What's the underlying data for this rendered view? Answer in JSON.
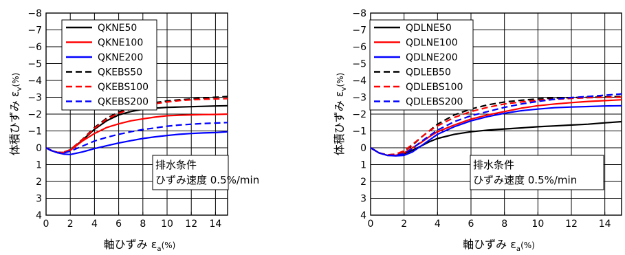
{
  "chart_data": [
    {
      "type": "line",
      "xlabel": "軸ひずみ ε_a(%)",
      "ylabel": "体積ひずみ ε_v(%)",
      "xlim": [
        0,
        15
      ],
      "ylim": [
        4,
        -8
      ],
      "y_axis_inverted": true,
      "grid": true,
      "x_ticks": [
        "0",
        "2",
        "4",
        "6",
        "8",
        "10",
        "12",
        "14"
      ],
      "y_ticks": [
        "−8",
        "−7",
        "−6",
        "−5",
        "−4",
        "−3",
        "−2",
        "−1",
        "0",
        "1",
        "2",
        "3",
        "4"
      ],
      "legend_position": "top-left",
      "annotation": [
        "排水条件",
        "ひずみ速度 0.5%/min"
      ],
      "series": [
        {
          "name": "QKNE50",
          "color": "#000000",
          "dashed": false,
          "x": [
            0,
            0.5,
            1,
            1.5,
            2,
            3,
            4,
            5,
            6,
            7,
            8,
            9,
            10,
            11,
            12,
            13,
            14,
            15
          ],
          "y": [
            0,
            0.18,
            0.28,
            0.28,
            0.15,
            -0.45,
            -1.1,
            -1.6,
            -1.95,
            -2.15,
            -2.28,
            -2.35,
            -2.4,
            -2.42,
            -2.44,
            -2.46,
            -2.48,
            -2.5
          ]
        },
        {
          "name": "QKNE100",
          "color": "#ff0000",
          "dashed": false,
          "x": [
            0,
            0.5,
            1,
            1.5,
            2,
            3,
            4,
            5,
            6,
            7,
            8,
            9,
            10,
            11,
            12,
            13,
            14,
            15
          ],
          "y": [
            0,
            0.18,
            0.28,
            0.28,
            0.15,
            -0.4,
            -0.85,
            -1.2,
            -1.42,
            -1.6,
            -1.72,
            -1.82,
            -1.9,
            -1.93,
            -1.95,
            -1.97,
            -1.98,
            -2.0
          ]
        },
        {
          "name": "QKNE200",
          "color": "#0000ff",
          "dashed": false,
          "x": [
            0,
            0.5,
            1,
            1.5,
            2,
            3,
            4,
            5,
            6,
            7,
            8,
            9,
            10,
            11,
            12,
            13,
            14,
            15
          ],
          "y": [
            0,
            0.18,
            0.3,
            0.38,
            0.4,
            0.25,
            0.05,
            -0.12,
            -0.28,
            -0.42,
            -0.55,
            -0.65,
            -0.73,
            -0.8,
            -0.85,
            -0.88,
            -0.9,
            -0.95
          ]
        },
        {
          "name": "QKEBS50",
          "color": "#000000",
          "dashed": true,
          "x": [
            0,
            0.5,
            1,
            1.5,
            2,
            3,
            4,
            5,
            6,
            7,
            8,
            9,
            10,
            11,
            12,
            13,
            14,
            15
          ],
          "y": [
            0,
            0.2,
            0.28,
            0.25,
            0.12,
            -0.5,
            -1.2,
            -1.75,
            -2.12,
            -2.38,
            -2.55,
            -2.68,
            -2.78,
            -2.85,
            -2.9,
            -2.95,
            -3.0,
            -3.05
          ]
        },
        {
          "name": "QKEBS100",
          "color": "#ff0000",
          "dashed": true,
          "x": [
            0,
            0.5,
            1,
            1.5,
            2,
            3,
            4,
            5,
            6,
            7,
            8,
            9,
            10,
            11,
            12,
            13,
            14,
            15
          ],
          "y": [
            0,
            0.2,
            0.28,
            0.25,
            0.12,
            -0.48,
            -1.15,
            -1.7,
            -2.05,
            -2.3,
            -2.48,
            -2.62,
            -2.72,
            -2.8,
            -2.85,
            -2.88,
            -2.9,
            -2.92
          ]
        },
        {
          "name": "QKEBS200",
          "color": "#0000ff",
          "dashed": true,
          "x": [
            0,
            0.5,
            1,
            1.5,
            2,
            3,
            4,
            5,
            6,
            7,
            8,
            9,
            10,
            11,
            12,
            13,
            14,
            15
          ],
          "y": [
            0,
            0.2,
            0.3,
            0.3,
            0.2,
            -0.1,
            -0.4,
            -0.62,
            -0.8,
            -0.95,
            -1.08,
            -1.18,
            -1.28,
            -1.35,
            -1.4,
            -1.44,
            -1.47,
            -1.5
          ]
        }
      ]
    },
    {
      "type": "line",
      "xlabel": "軸ひずみ ε_a(%)",
      "ylabel": "体積ひずみ ε_v(%)",
      "xlim": [
        0,
        15
      ],
      "ylim": [
        4,
        -8
      ],
      "y_axis_inverted": true,
      "grid": true,
      "x_ticks": [
        "0",
        "2",
        "4",
        "6",
        "8",
        "10",
        "12",
        "14"
      ],
      "y_ticks": [
        "−8",
        "−7",
        "−6",
        "−5",
        "−4",
        "−3",
        "−2",
        "−1",
        "0",
        "1",
        "2",
        "3",
        "4"
      ],
      "legend_position": "top-left",
      "annotation": [
        "排水条件",
        "ひずみ速度 0.5%/min"
      ],
      "series": [
        {
          "name": "QDLNE50",
          "color": "#000000",
          "dashed": false,
          "x": [
            0,
            0.5,
            1,
            1.5,
            2,
            2.5,
            3,
            3.5,
            4,
            5,
            6,
            7,
            8,
            9,
            10,
            11,
            12,
            13,
            14,
            15
          ],
          "y": [
            0,
            0.3,
            0.45,
            0.45,
            0.35,
            0.15,
            -0.1,
            -0.35,
            -0.55,
            -0.8,
            -0.95,
            -1.05,
            -1.12,
            -1.18,
            -1.25,
            -1.3,
            -1.35,
            -1.4,
            -1.48,
            -1.55
          ]
        },
        {
          "name": "QDLNE100",
          "color": "#ff0000",
          "dashed": false,
          "x": [
            0,
            0.5,
            1,
            1.5,
            2,
            2.5,
            3,
            3.5,
            4,
            5,
            6,
            7,
            8,
            9,
            10,
            11,
            12,
            13,
            14,
            15
          ],
          "y": [
            0,
            0.3,
            0.45,
            0.45,
            0.3,
            0.0,
            -0.3,
            -0.65,
            -0.95,
            -1.35,
            -1.7,
            -1.95,
            -2.15,
            -2.35,
            -2.5,
            -2.6,
            -2.68,
            -2.75,
            -2.8,
            -2.85
          ]
        },
        {
          "name": "QDLNE200",
          "color": "#0000ff",
          "dashed": false,
          "x": [
            0,
            0.5,
            1,
            1.5,
            2,
            2.5,
            3,
            3.5,
            4,
            5,
            6,
            7,
            8,
            9,
            10,
            11,
            12,
            13,
            14,
            15
          ],
          "y": [
            0,
            0.3,
            0.45,
            0.48,
            0.45,
            0.25,
            -0.1,
            -0.45,
            -0.8,
            -1.25,
            -1.6,
            -1.85,
            -2.05,
            -2.2,
            -2.3,
            -2.38,
            -2.42,
            -2.45,
            -2.48,
            -2.5
          ]
        },
        {
          "name": "QDLEB50",
          "color": "#000000",
          "dashed": true,
          "x": [
            0,
            0.5,
            1,
            1.5,
            2,
            2.5,
            3,
            3.5,
            4,
            5,
            6,
            7,
            8,
            9,
            10,
            11,
            12,
            13,
            14,
            15
          ],
          "y": [
            0,
            0.3,
            0.42,
            0.38,
            0.2,
            -0.15,
            -0.6,
            -1.0,
            -1.4,
            -1.95,
            -2.3,
            -2.55,
            -2.72,
            -2.82,
            -2.9,
            -2.95,
            -2.98,
            -3.0,
            -3.02,
            -3.05
          ]
        },
        {
          "name": "QDLEBS100",
          "color": "#ff0000",
          "dashed": true,
          "x": [
            0,
            0.5,
            1,
            1.5,
            2,
            2.5,
            3,
            3.5,
            4,
            5,
            6,
            7,
            8,
            9,
            10,
            11,
            12,
            13,
            14,
            15
          ],
          "y": [
            0,
            0.3,
            0.42,
            0.38,
            0.18,
            -0.2,
            -0.6,
            -1.0,
            -1.3,
            -1.8,
            -2.15,
            -2.4,
            -2.6,
            -2.72,
            -2.82,
            -2.88,
            -2.93,
            -2.97,
            -3.0,
            -3.0
          ]
        },
        {
          "name": "QDLEBS200",
          "color": "#0000ff",
          "dashed": true,
          "x": [
            0,
            0.5,
            1,
            1.5,
            2,
            2.5,
            3,
            3.5,
            4,
            5,
            6,
            7,
            8,
            9,
            10,
            11,
            12,
            13,
            14,
            15
          ],
          "y": [
            0,
            0.3,
            0.45,
            0.45,
            0.35,
            0.05,
            -0.35,
            -0.7,
            -1.05,
            -1.55,
            -1.9,
            -2.15,
            -2.4,
            -2.6,
            -2.75,
            -2.88,
            -2.98,
            -3.05,
            -3.12,
            -3.2
          ]
        }
      ]
    }
  ]
}
